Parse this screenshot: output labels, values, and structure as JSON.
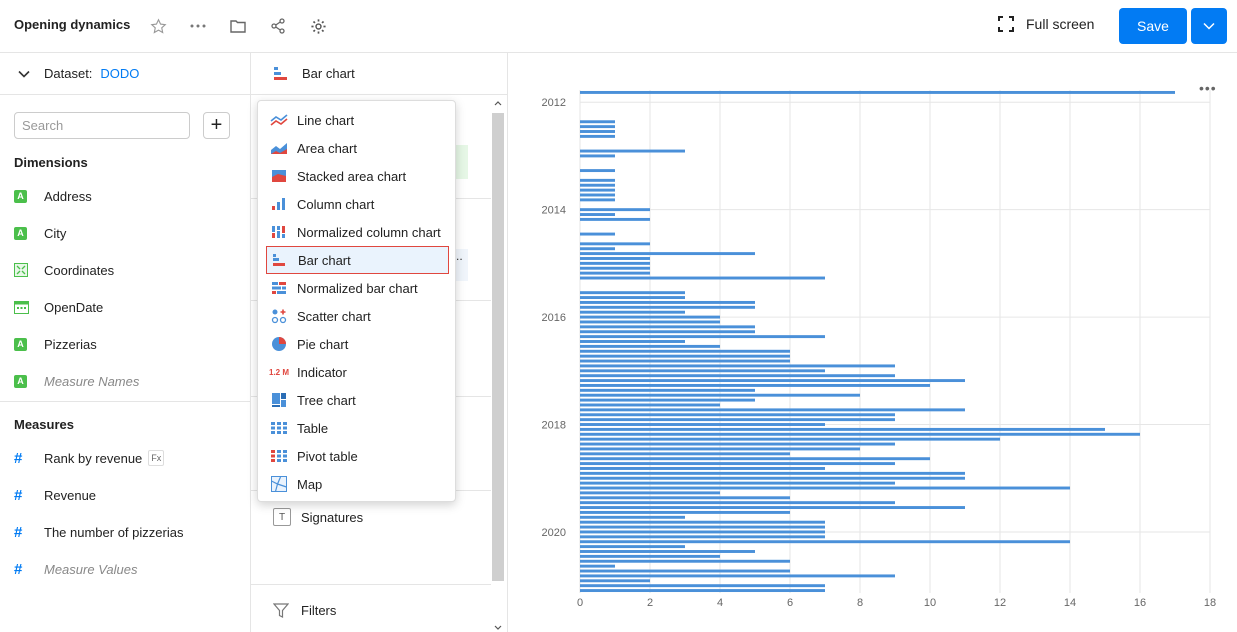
{
  "header": {
    "title": "Opening dynamics",
    "fullscreen_label": "Full screen",
    "save_label": "Save"
  },
  "left": {
    "dataset_label": "Dataset:",
    "dataset_name": "DODO",
    "search_placeholder": "Search",
    "dimensions_title": "Dimensions",
    "dimensions": [
      {
        "label": "Address",
        "icon": "string-icon"
      },
      {
        "label": "City",
        "icon": "string-icon"
      },
      {
        "label": "Coordinates",
        "icon": "geo-icon"
      },
      {
        "label": "OpenDate",
        "icon": "date-icon"
      },
      {
        "label": "Pizzerias",
        "icon": "string-icon"
      },
      {
        "label": "Measure Names",
        "icon": "string-icon"
      }
    ],
    "measures_title": "Measures",
    "measures": [
      {
        "label": "Rank by revenue",
        "badge": "Fx"
      },
      {
        "label": "Revenue"
      },
      {
        "label": "The number of pizzerias"
      },
      {
        "label": "Measure Values"
      }
    ]
  },
  "middle": {
    "chart_type_label": "Bar chart",
    "ghost_text": "..",
    "signatures_label": "Signatures",
    "signatures_icon": "T",
    "filters_label": "Filters"
  },
  "menu": {
    "items": [
      {
        "label": "Line chart",
        "icon": "line-chart-icon"
      },
      {
        "label": "Area chart",
        "icon": "area-chart-icon"
      },
      {
        "label": "Stacked area chart",
        "icon": "stacked-area-chart-icon"
      },
      {
        "label": "Column chart",
        "icon": "column-chart-icon"
      },
      {
        "label": "Normalized column chart",
        "icon": "normalized-column-chart-icon"
      },
      {
        "label": "Bar chart",
        "icon": "bar-chart-icon",
        "selected": true
      },
      {
        "label": "Normalized bar chart",
        "icon": "normalized-bar-chart-icon"
      },
      {
        "label": "Scatter chart",
        "icon": "scatter-chart-icon"
      },
      {
        "label": "Pie chart",
        "icon": "pie-chart-icon"
      },
      {
        "label": "Indicator",
        "icon": "indicator-icon",
        "icon_text": "1.2 M"
      },
      {
        "label": "Tree chart",
        "icon": "tree-chart-icon"
      },
      {
        "label": "Table",
        "icon": "table-icon"
      },
      {
        "label": "Pivot table",
        "icon": "pivot-table-icon"
      },
      {
        "label": "Map",
        "icon": "map-icon"
      }
    ]
  },
  "colors": {
    "accent": "#027bf3",
    "bar": "#4a90d9",
    "highlight": "#e0473f"
  },
  "chart_data": {
    "type": "bar",
    "orientation": "horizontal",
    "title": "",
    "xlabel": "",
    "ylabel": "",
    "xlim": [
      0,
      18
    ],
    "x_ticks": [
      "0",
      "2",
      "4",
      "6",
      "8",
      "10",
      "12",
      "14",
      "16",
      "18"
    ],
    "y_tick_labels": [
      {
        "label": "2012",
        "index": 2
      },
      {
        "label": "2014",
        "index": 24
      },
      {
        "label": "2016",
        "index": 46
      },
      {
        "label": "2018",
        "index": 68
      },
      {
        "label": "2020",
        "index": 90
      }
    ],
    "values": [
      17,
      0,
      0,
      0,
      0,
      0,
      1,
      1,
      1,
      1,
      0,
      0,
      3,
      1,
      0,
      0,
      1,
      0,
      1,
      1,
      1,
      1,
      1,
      0,
      2,
      1,
      2,
      0,
      0,
      1,
      0,
      2,
      1,
      5,
      2,
      2,
      2,
      2,
      7,
      0,
      0,
      3,
      3,
      5,
      5,
      3,
      4,
      4,
      5,
      5,
      7,
      3,
      4,
      6,
      6,
      6,
      9,
      7,
      9,
      11,
      10,
      5,
      8,
      5,
      4,
      11,
      9,
      9,
      7,
      15,
      16,
      12,
      9,
      8,
      6,
      10,
      9,
      7,
      11,
      11,
      9,
      14,
      4,
      6,
      9,
      11,
      6,
      3,
      7,
      7,
      7,
      7,
      14,
      3,
      5,
      4,
      6,
      1,
      6,
      9,
      2,
      7,
      7
    ]
  }
}
